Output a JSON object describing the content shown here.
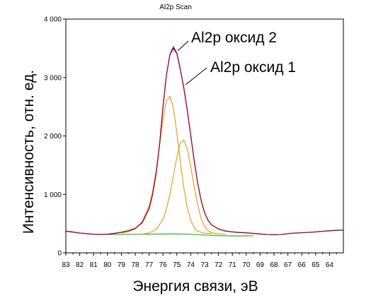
{
  "chart_data": {
    "type": "line",
    "title": "Al2p Scan",
    "xlabel": "Энергия связи, эВ",
    "ylabel": "Интенсивность, отн. ед.",
    "x_reversed": true,
    "xlim": [
      83,
      63
    ],
    "ylim": [
      0,
      4000
    ],
    "x_ticks": [
      "83",
      "82",
      "81",
      "80",
      "79",
      "78",
      "77",
      "76",
      "75",
      "74",
      "73",
      "72",
      "71",
      "70",
      "69",
      "68",
      "67",
      "66",
      "65",
      "64"
    ],
    "y_ticks": [
      "0",
      "1 000",
      "2 000",
      "3 000",
      "4 000"
    ],
    "y_tick_values": [
      0,
      1000,
      2000,
      3000,
      4000
    ],
    "grid": false,
    "legend": "none",
    "colors": {
      "experimental": "#cc0000",
      "envelope": "#1a1aa6",
      "component": "#e0a020",
      "background": "#22bb22"
    },
    "series": [
      {
        "role": "experimental",
        "x": [
          83.0,
          82.5,
          82.0,
          81.5,
          81.0,
          80.5,
          80.0,
          79.5,
          79.0,
          78.5,
          78.0,
          77.5,
          77.0,
          76.75,
          76.5,
          76.25,
          76.0,
          75.75,
          75.5,
          75.25,
          75.0,
          74.75,
          74.5,
          74.25,
          74.0,
          73.75,
          73.5,
          73.25,
          73.0,
          72.75,
          72.5,
          72.0,
          71.5,
          71.0,
          70.5,
          70.0,
          69.5,
          69.0,
          68.5,
          68.0,
          67.5,
          67.0,
          66.5,
          66.0,
          65.5,
          65.0,
          64.5,
          64.0,
          63.5,
          63.0
        ],
        "y": [
          375,
          360,
          340,
          330,
          320,
          315,
          320,
          335,
          355,
          380,
          420,
          520,
          760,
          1000,
          1350,
          1850,
          2500,
          3050,
          3400,
          3530,
          3420,
          3150,
          2830,
          2450,
          2020,
          1580,
          1200,
          900,
          690,
          560,
          480,
          410,
          375,
          360,
          350,
          345,
          335,
          325,
          315,
          310,
          315,
          330,
          340,
          345,
          350,
          360,
          370,
          380,
          390,
          390
        ]
      },
      {
        "role": "envelope",
        "x": [
          83.0,
          82.5,
          82.0,
          81.5,
          81.0,
          80.5,
          80.0,
          79.5,
          79.0,
          78.5,
          78.0,
          77.5,
          77.0,
          76.75,
          76.5,
          76.25,
          76.0,
          75.75,
          75.5,
          75.25,
          75.0,
          74.75,
          74.5,
          74.25,
          74.0,
          73.75,
          73.5,
          73.25,
          73.0,
          72.75,
          72.5,
          72.0,
          71.5,
          71.0,
          70.5,
          70.0,
          69.5,
          69.0,
          68.5,
          68.0,
          67.5,
          67.0,
          66.5,
          66.0,
          65.5,
          65.0,
          64.5,
          64.0,
          63.5,
          63.0
        ],
        "y": [
          370,
          355,
          338,
          328,
          318,
          315,
          318,
          332,
          352,
          378,
          418,
          515,
          755,
          995,
          1345,
          1840,
          2490,
          3040,
          3390,
          3500,
          3410,
          3140,
          2820,
          2440,
          2010,
          1575,
          1195,
          895,
          685,
          555,
          478,
          408,
          372,
          358,
          348,
          342,
          332,
          322,
          314,
          310,
          314,
          328,
          338,
          344,
          350,
          358,
          368,
          376,
          386,
          388
        ]
      },
      {
        "role": "component",
        "x": [
          79.0,
          78.5,
          78.0,
          77.5,
          77.0,
          76.75,
          76.5,
          76.25,
          76.0,
          75.75,
          75.5,
          75.25,
          75.0,
          74.75,
          74.5,
          74.25,
          74.0,
          73.75,
          73.5,
          73.0,
          72.5
        ],
        "y": [
          340,
          360,
          410,
          530,
          800,
          1040,
          1390,
          1840,
          2290,
          2600,
          2680,
          2480,
          2050,
          1560,
          1120,
          780,
          560,
          430,
          370,
          335,
          330
        ]
      },
      {
        "role": "component",
        "x": [
          77.5,
          77.0,
          76.5,
          76.0,
          75.75,
          75.5,
          75.25,
          75.0,
          74.75,
          74.5,
          74.25,
          74.0,
          73.75,
          73.5,
          73.25,
          73.0,
          72.75,
          72.5,
          72.0,
          71.5
        ],
        "y": [
          320,
          340,
          400,
          570,
          750,
          1000,
          1320,
          1640,
          1880,
          1930,
          1780,
          1480,
          1130,
          820,
          590,
          450,
          380,
          345,
          325,
          320
        ]
      },
      {
        "role": "background",
        "x": [
          80.0,
          78.0,
          76.0,
          75.0,
          74.0,
          73.0,
          72.0,
          71.0,
          70.0,
          69.5
        ],
        "y": [
          315,
          318,
          322,
          325,
          318,
          305,
          295,
          290,
          290,
          292
        ]
      }
    ],
    "annotations": [
      {
        "text": "Al2p оксид 2",
        "x": 75.0,
        "y": 3500
      },
      {
        "text": "Al2p оксид 1",
        "x": 74.6,
        "y": 2900
      }
    ]
  }
}
